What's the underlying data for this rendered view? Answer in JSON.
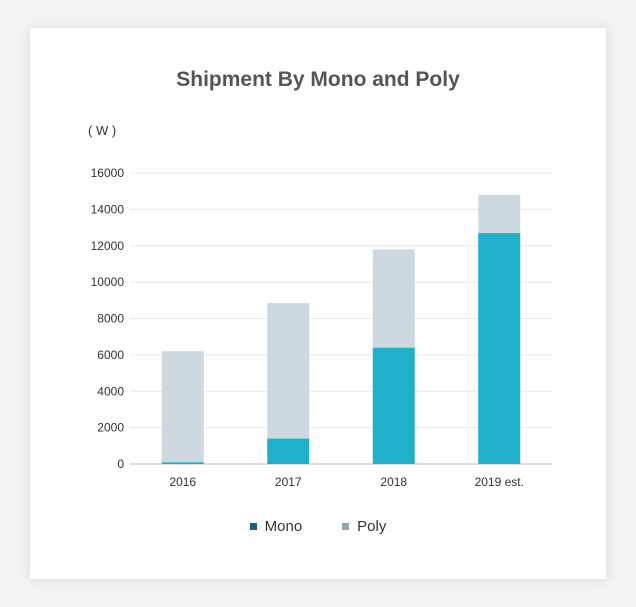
{
  "chart_data": {
    "type": "bar",
    "stacked": true,
    "title": "Shipment By Mono and Poly",
    "ylabel": "( W )",
    "xlabel": "",
    "categories": [
      "2016",
      "2017",
      "2018",
      "2019 est."
    ],
    "series": [
      {
        "name": "Mono",
        "values": [
          100,
          1400,
          6400,
          12700
        ],
        "color": "#1fb1cc",
        "legend_color": "#1b5f80"
      },
      {
        "name": "Poly",
        "values": [
          6100,
          7450,
          5400,
          2100
        ],
        "color": "#cdd8df",
        "legend_color": "#8ea6b6"
      }
    ],
    "ylim": [
      0,
      16000
    ],
    "yticks": [
      "0",
      "2000",
      "4000",
      "6000",
      "8000",
      "10000",
      "12000",
      "14000",
      "16000"
    ],
    "grid": true,
    "legend_position": "bottom"
  }
}
